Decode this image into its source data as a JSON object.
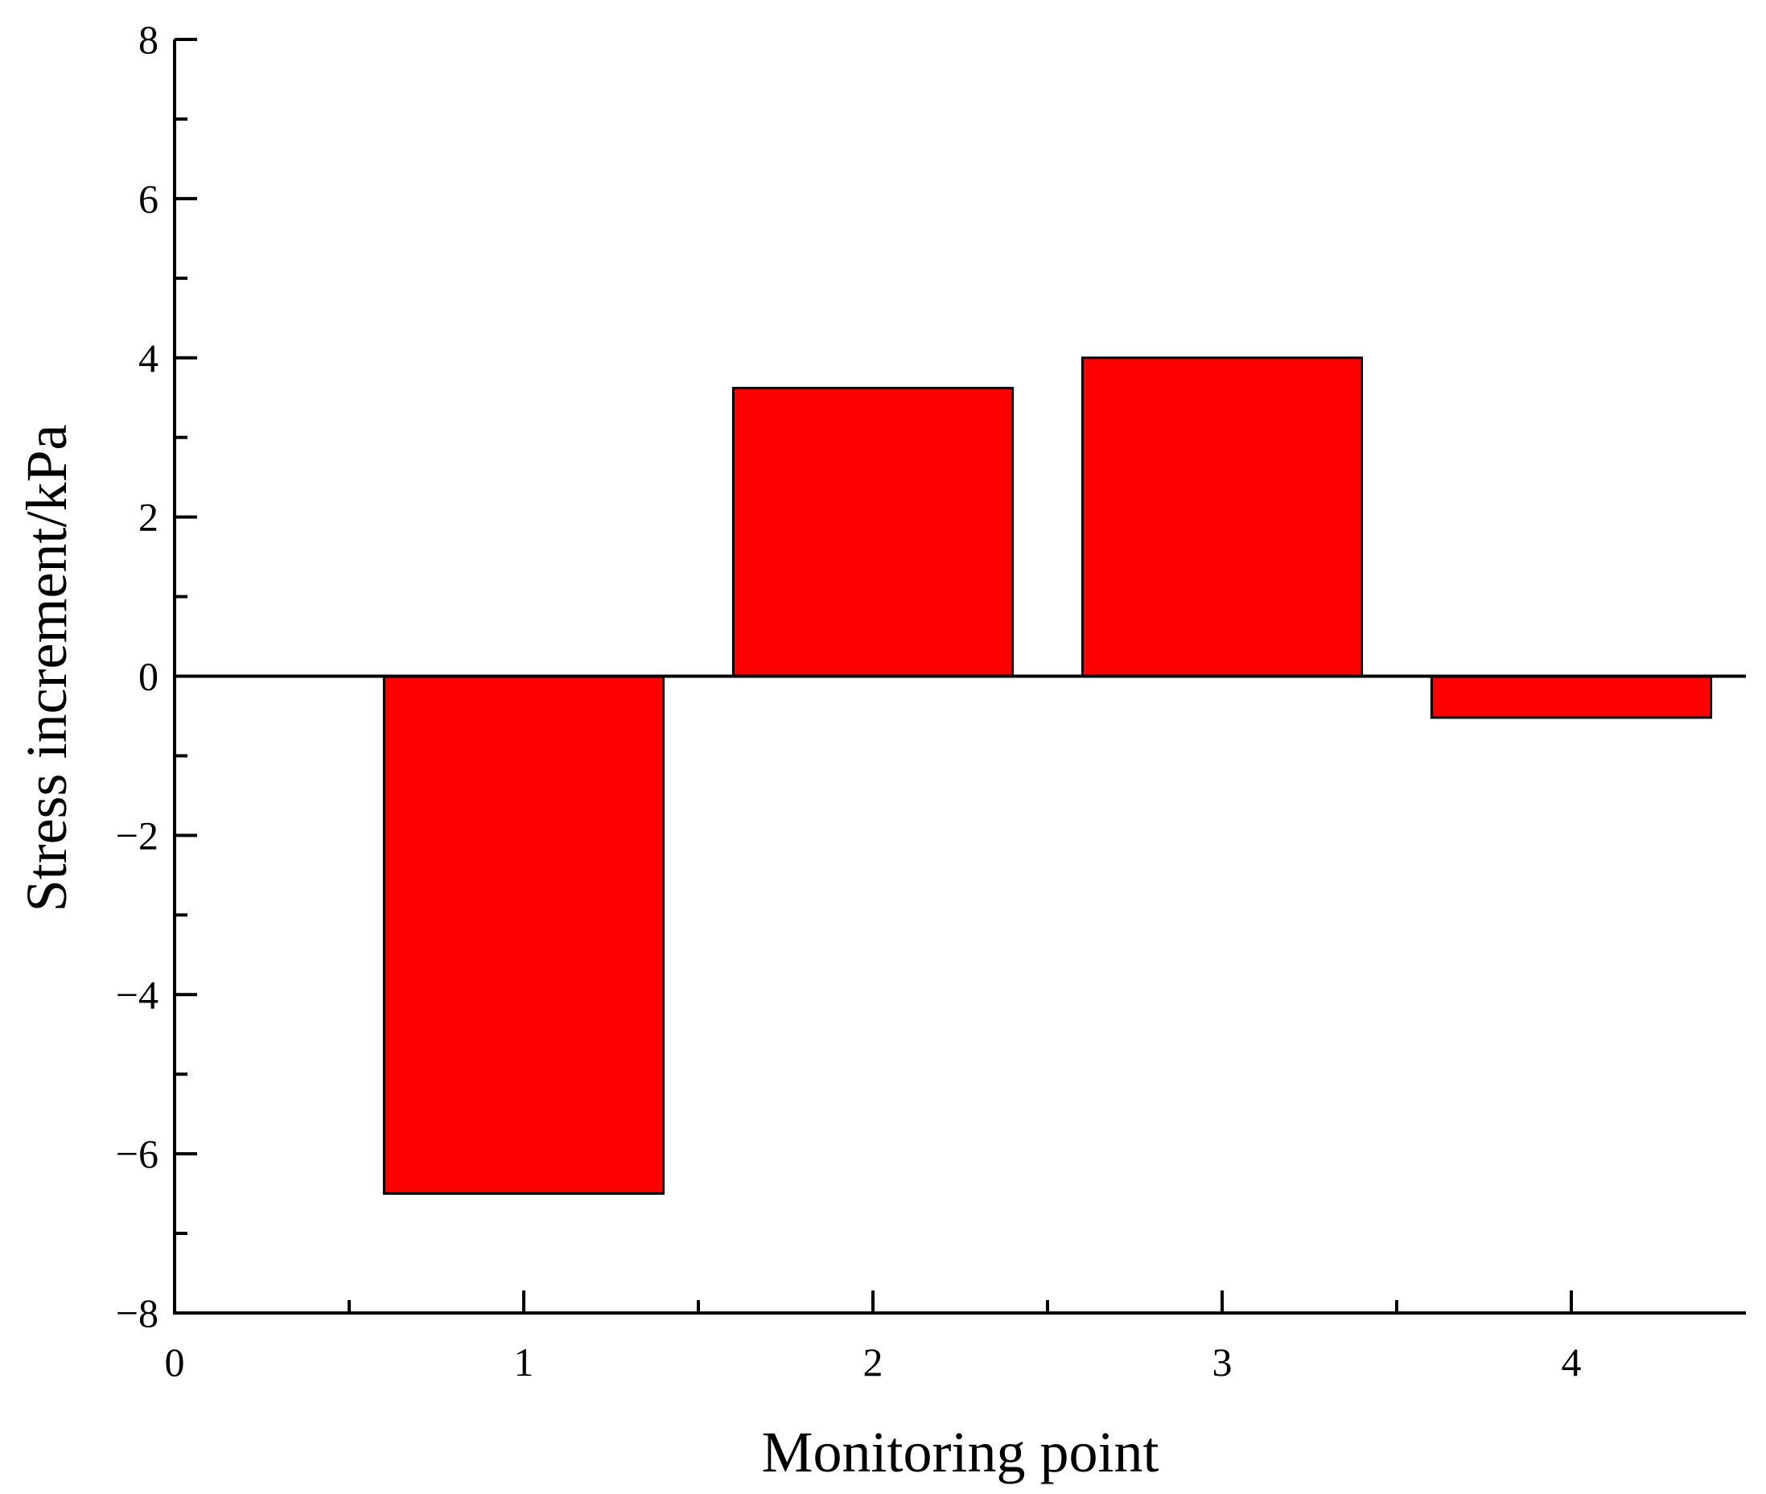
{
  "chart_data": {
    "type": "bar",
    "title": "",
    "xlabel": "Monitoring point",
    "ylabel": "Stress increment/kPa",
    "x": [
      1,
      2,
      3,
      4
    ],
    "values": [
      -6.5,
      3.62,
      4.0,
      -0.52
    ],
    "bar_width": 0.8,
    "xlim": [
      0,
      4.5
    ],
    "ylim": [
      -8,
      8
    ],
    "xticks": [
      0,
      1,
      2,
      3,
      4
    ],
    "xtick_labels": [
      "0",
      "1",
      "2",
      "3",
      "4"
    ],
    "yticks": [
      -8,
      -6,
      -4,
      -2,
      0,
      2,
      4,
      6,
      8
    ],
    "ytick_labels": [
      "−8",
      "−6",
      "−4",
      "−2",
      "0",
      "2",
      "4",
      "6",
      "8"
    ],
    "bar_color": "#ff0000",
    "grid": false,
    "legend": "none"
  }
}
